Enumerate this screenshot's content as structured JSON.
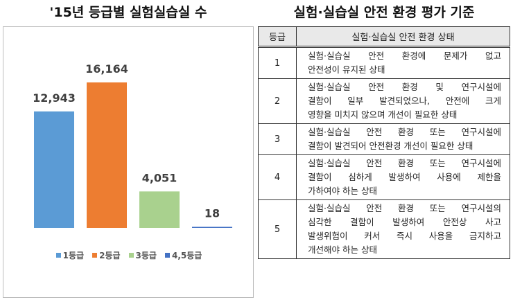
{
  "titles": {
    "left": "'15년 등급별 실험실습실 수",
    "right": "실험·실습실 안전 환경 평가 기준"
  },
  "chart_data": {
    "type": "bar",
    "title": "'15년 등급별 실험실습실 수",
    "categories": [
      "1등급",
      "2등급",
      "3등급",
      "4,5등급"
    ],
    "values": [
      12943,
      16164,
      4051,
      18
    ],
    "labels": [
      "12,943",
      "16,164",
      "4,051",
      "18"
    ],
    "colors": [
      "#5b9bd5",
      "#ed7d31",
      "#a9d18e",
      "#4472c4"
    ],
    "ylim": [
      0,
      16164
    ],
    "grid": false,
    "legend": "bottom"
  },
  "table": {
    "headers": [
      "등급",
      "실험·실습실 안전 환경 상태"
    ],
    "rows": [
      {
        "grade": "1",
        "lines": [
          "실험·실습실 안전 환경에 문제가 없고",
          "안전성이 유지된 상태"
        ]
      },
      {
        "grade": "2",
        "lines": [
          "실험·실습실 안전 환경 및 연구시설에",
          "결함이 일부 발견되었으나, 안전에 크게",
          "영향을 미치지 않으며 개선이 필요한 상태"
        ]
      },
      {
        "grade": "3",
        "lines": [
          "실험·실습실 안전 환경 또는 연구시설에",
          "결함이 발견되어 안전환경 개선이 필요한 상태"
        ]
      },
      {
        "grade": "4",
        "lines": [
          "실험·실습실 안전 환경 또는 연구시설에",
          "결함이 심하게 발생하여 사용에 제한을",
          "가하여야 하는 상태"
        ]
      },
      {
        "grade": "5",
        "lines": [
          "실험·실습실 안전 환경 또는 연구시설의",
          "심각한 결함이 발생하여 안전상 사고",
          "발생위험이 커서 즉시 사용을 금지하고",
          "개선해야 하는 상태"
        ]
      }
    ]
  }
}
